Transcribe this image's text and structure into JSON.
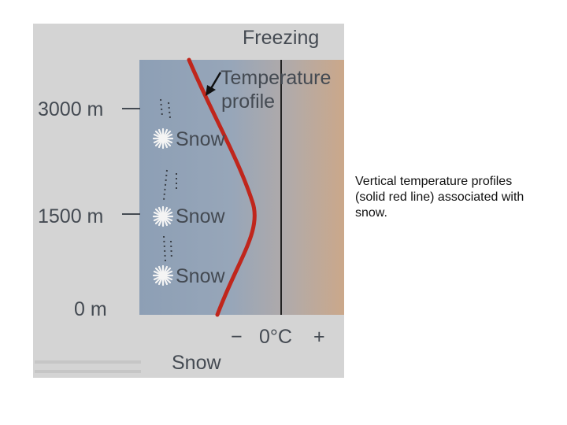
{
  "diagram": {
    "header_label": "Freezing",
    "callout_label_line1": "Temperature",
    "callout_label_line2": "profile",
    "altitude_labels": [
      "3000 m",
      "1500 m",
      "0 m"
    ],
    "precip_labels": [
      "Snow",
      "Snow",
      "Snow"
    ],
    "temp_axis": {
      "minus": "−",
      "zero": "0°C",
      "plus": "+"
    },
    "footer_label": "Snow",
    "colors": {
      "cold": "#8fa3b8",
      "warm": "#c9aa8e",
      "profile_line": "#c0261c",
      "freezing_line": "#222222",
      "text": "#444a52"
    }
  },
  "caption": "Vertical temperature profiles (solid red line) associated with snow."
}
